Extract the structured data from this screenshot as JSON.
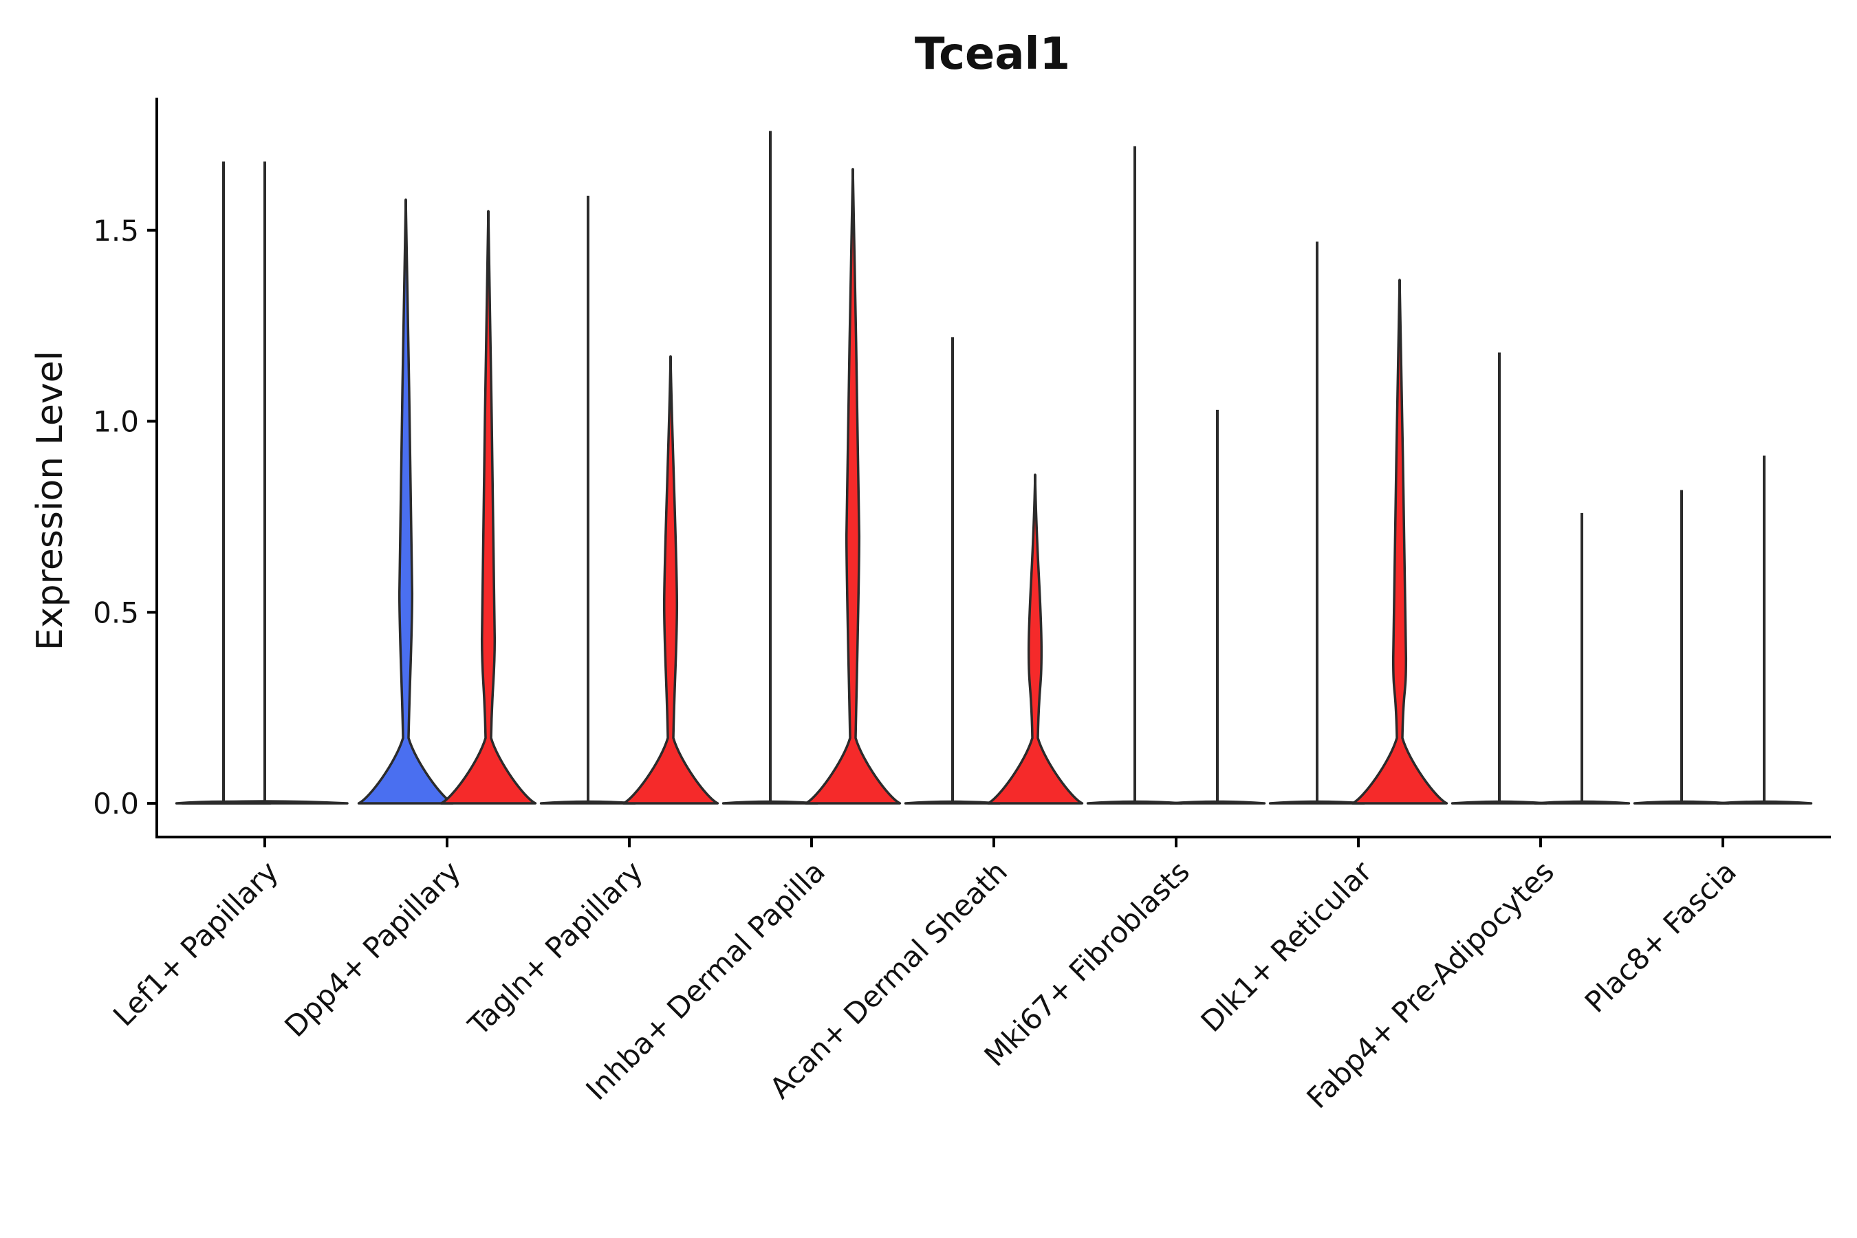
{
  "chart_data": {
    "type": "violin",
    "title": "Tceal1",
    "xlabel": "",
    "ylabel": "Expression Level",
    "ylim": [
      -0.09,
      1.85
    ],
    "yticks": [
      "0.0",
      "0.5",
      "1.0",
      "1.5"
    ],
    "grid": false,
    "legend": "none",
    "categories": [
      "Lef1+ Papillary",
      "Dpp4+ Papillary",
      "Tagln+ Papillary",
      "Inhba+ Dermal Papilla",
      "Acan+ Dermal Sheath",
      "Mki67+ Fibroblasts",
      "Dlk1+ Reticular",
      "Fabp4+ Pre-Adipocytes",
      "Plac8+ Fascia"
    ],
    "series": [
      {
        "name": "left",
        "values_max": [
          1.68,
          1.58,
          1.59,
          1.76,
          1.22,
          1.72,
          1.47,
          1.18,
          0.82
        ],
        "colors": [
          "#2b2b2b",
          "#4a6ff0",
          "#2b2b2b",
          "#2b2b2b",
          "#2b2b2b",
          "#2b2b2b",
          "#2b2b2b",
          "#2b2b2b",
          "#2b2b2b"
        ],
        "mode_values": [
          0.0,
          0.55,
          0.0,
          0.0,
          0.0,
          0.0,
          0.0,
          0.0,
          0.0
        ]
      },
      {
        "name": "right",
        "values_max": [
          null,
          1.55,
          1.17,
          1.66,
          0.86,
          1.03,
          1.37,
          0.76,
          0.91
        ],
        "colors": [
          "#2b2b2b",
          "#f52a2a",
          "#f52a2a",
          "#f52a2a",
          "#f52a2a",
          "#2b2b2b",
          "#f52a2a",
          "#2b2b2b",
          "#2b2b2b"
        ],
        "mode_values": [
          null,
          0.43,
          0.52,
          0.7,
          0.4,
          0.0,
          0.38,
          0.0,
          0.0
        ]
      }
    ]
  }
}
